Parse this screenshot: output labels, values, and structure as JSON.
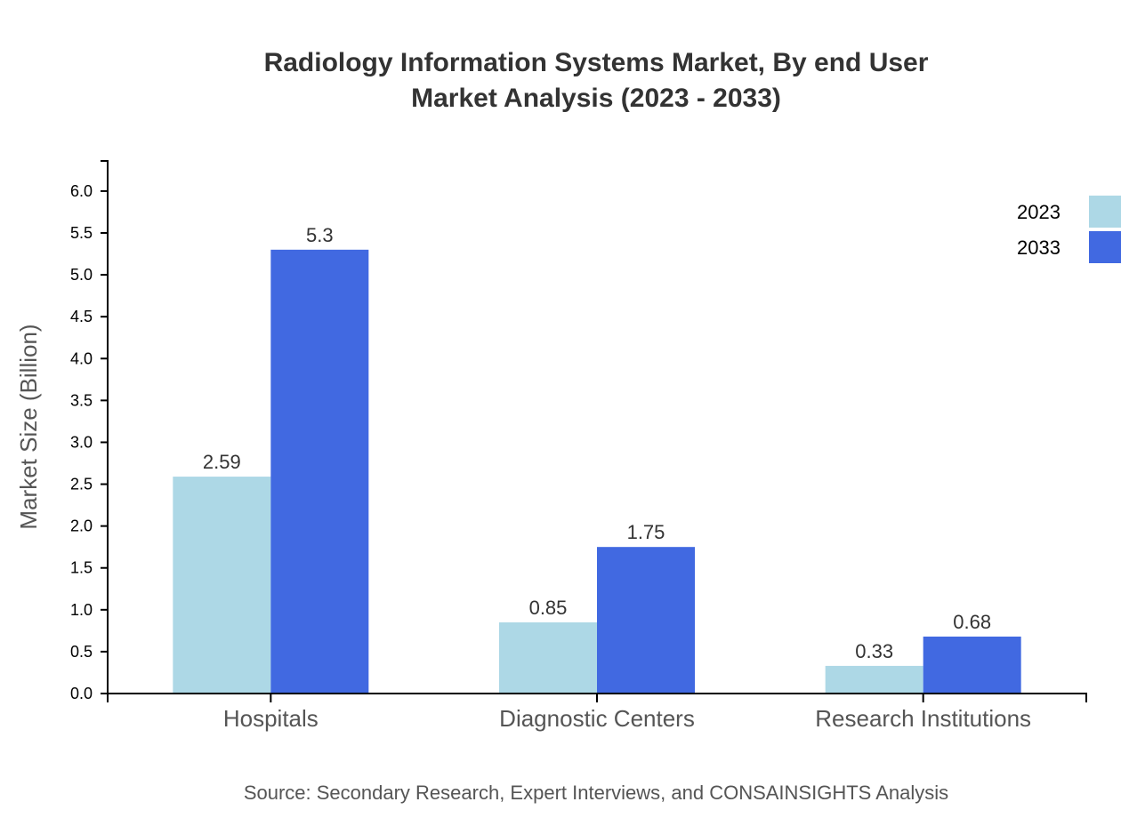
{
  "chart_data": {
    "type": "bar",
    "title": [
      "Radiology Information Systems Market, By end User",
      "Market Analysis (2023 - 2033)"
    ],
    "xlabel": "",
    "ylabel": "Market Size (Billion)",
    "categories": [
      "Hospitals",
      "Diagnostic Centers",
      "Research Institutions"
    ],
    "series": [
      {
        "name": "2023",
        "values": [
          2.59,
          0.85,
          0.33
        ],
        "labels": [
          "2.59",
          "0.85",
          "0.33"
        ],
        "color": "#ADD8E6"
      },
      {
        "name": "2033",
        "values": [
          5.3,
          1.75,
          0.68
        ],
        "labels": [
          "5.3",
          "1.75",
          "0.68"
        ],
        "color": "#4169E1"
      }
    ],
    "ylim": [
      0,
      6.36
    ],
    "yticks": [
      "0.0",
      "0.5",
      "1.0",
      "1.5",
      "2.0",
      "2.5",
      "3.0",
      "3.5",
      "4.0",
      "4.5",
      "5.0",
      "5.5",
      "6.0"
    ],
    "grid": false,
    "legend": "top-right",
    "source": "Source: Secondary Research, Expert Interviews, and CONSAINSIGHTS Analysis"
  }
}
